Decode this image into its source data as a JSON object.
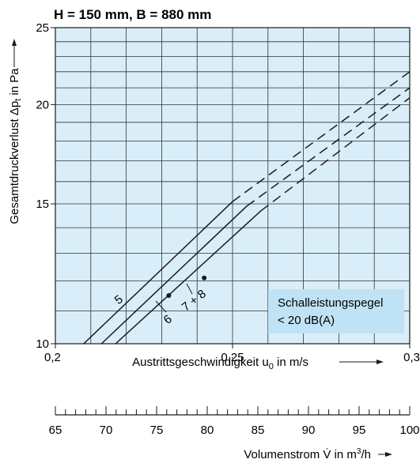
{
  "chart_data": {
    "type": "line",
    "title": "H = 150 mm, B = 880 mm",
    "xlabel": "Austrittsgeschwindigkeit u",
    "xlabel_sub": "0",
    "xlabel_unit": " in m/s",
    "ylabel": "Gesamtdruckverlust Δp",
    "ylabel_sub": "t",
    "ylabel_unit": " in Pa",
    "xlim": [
      0.2,
      0.3
    ],
    "ylim": [
      10,
      25
    ],
    "y_scale": "log",
    "x_ticks": [
      0.2,
      0.25,
      0.3
    ],
    "x_tick_labels": [
      "0,2",
      "0,25",
      "0,3"
    ],
    "y_ticks": [
      10,
      15,
      20,
      25
    ],
    "y_tick_labels": [
      "10",
      "15",
      "20",
      "25"
    ],
    "grid": true,
    "grid_x_step": 0.01,
    "grid_y_minor": [
      11,
      12,
      13,
      14,
      16,
      17,
      18,
      19,
      21,
      22,
      23,
      24
    ],
    "series": [
      {
        "name": "5",
        "solid": [
          [
            0.208,
            10.0
          ],
          [
            0.25,
            15.1
          ]
        ],
        "dashed": [
          [
            0.25,
            15.1
          ],
          [
            0.3,
            22.0
          ]
        ]
      },
      {
        "name": "6",
        "solid": [
          [
            0.213,
            10.0
          ],
          [
            0.254,
            14.9
          ]
        ],
        "dashed": [
          [
            0.254,
            14.9
          ],
          [
            0.3,
            21.0
          ]
        ]
      },
      {
        "name": "7 + 8",
        "solid": [
          [
            0.217,
            10.0
          ],
          [
            0.258,
            14.7
          ]
        ],
        "dashed": [
          [
            0.258,
            14.7
          ],
          [
            0.3,
            20.4
          ]
        ]
      }
    ],
    "points": [
      {
        "series": "6",
        "x": 0.232,
        "y": 11.5
      },
      {
        "series": "7 + 8",
        "x": 0.242,
        "y": 12.1
      }
    ],
    "series_labels": [
      "5",
      "6",
      "7 + 8"
    ],
    "annotation": {
      "line1": "Schalleistungspegel",
      "line2": "< 20 dB(A)"
    },
    "colors": {
      "plot_bg": "#d9eef8",
      "grid": "#333333",
      "line": "#1a1a1a",
      "annotation_bg": "#bfe3f4"
    },
    "secondary_axis": {
      "label": "Volumenstrom V̇ in m",
      "label_sup": "3",
      "label_unit": "/h",
      "min": 65,
      "max": 100,
      "ticks": [
        65,
        70,
        75,
        80,
        85,
        90,
        95,
        100
      ],
      "tick_labels": [
        "65",
        "70",
        "75",
        "80",
        "85",
        "90",
        "95",
        "100"
      ],
      "minor_step": 1
    }
  }
}
